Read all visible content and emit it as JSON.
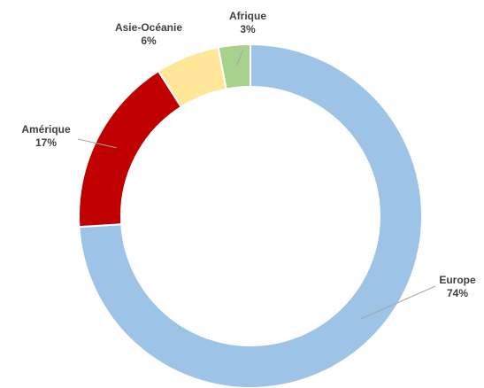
{
  "chart_data": {
    "type": "pie",
    "variant": "donut",
    "title": "",
    "legend": "none",
    "categories": [
      "Europe",
      "Amérique",
      "Asie-Océanie",
      "Afrique"
    ],
    "values": [
      74,
      17,
      6,
      3
    ],
    "value_labels": [
      "74%",
      "17%",
      "6%",
      "3%"
    ],
    "colors": [
      "#9dc3e6",
      "#c00000",
      "#ffe699",
      "#a9d18e"
    ]
  }
}
